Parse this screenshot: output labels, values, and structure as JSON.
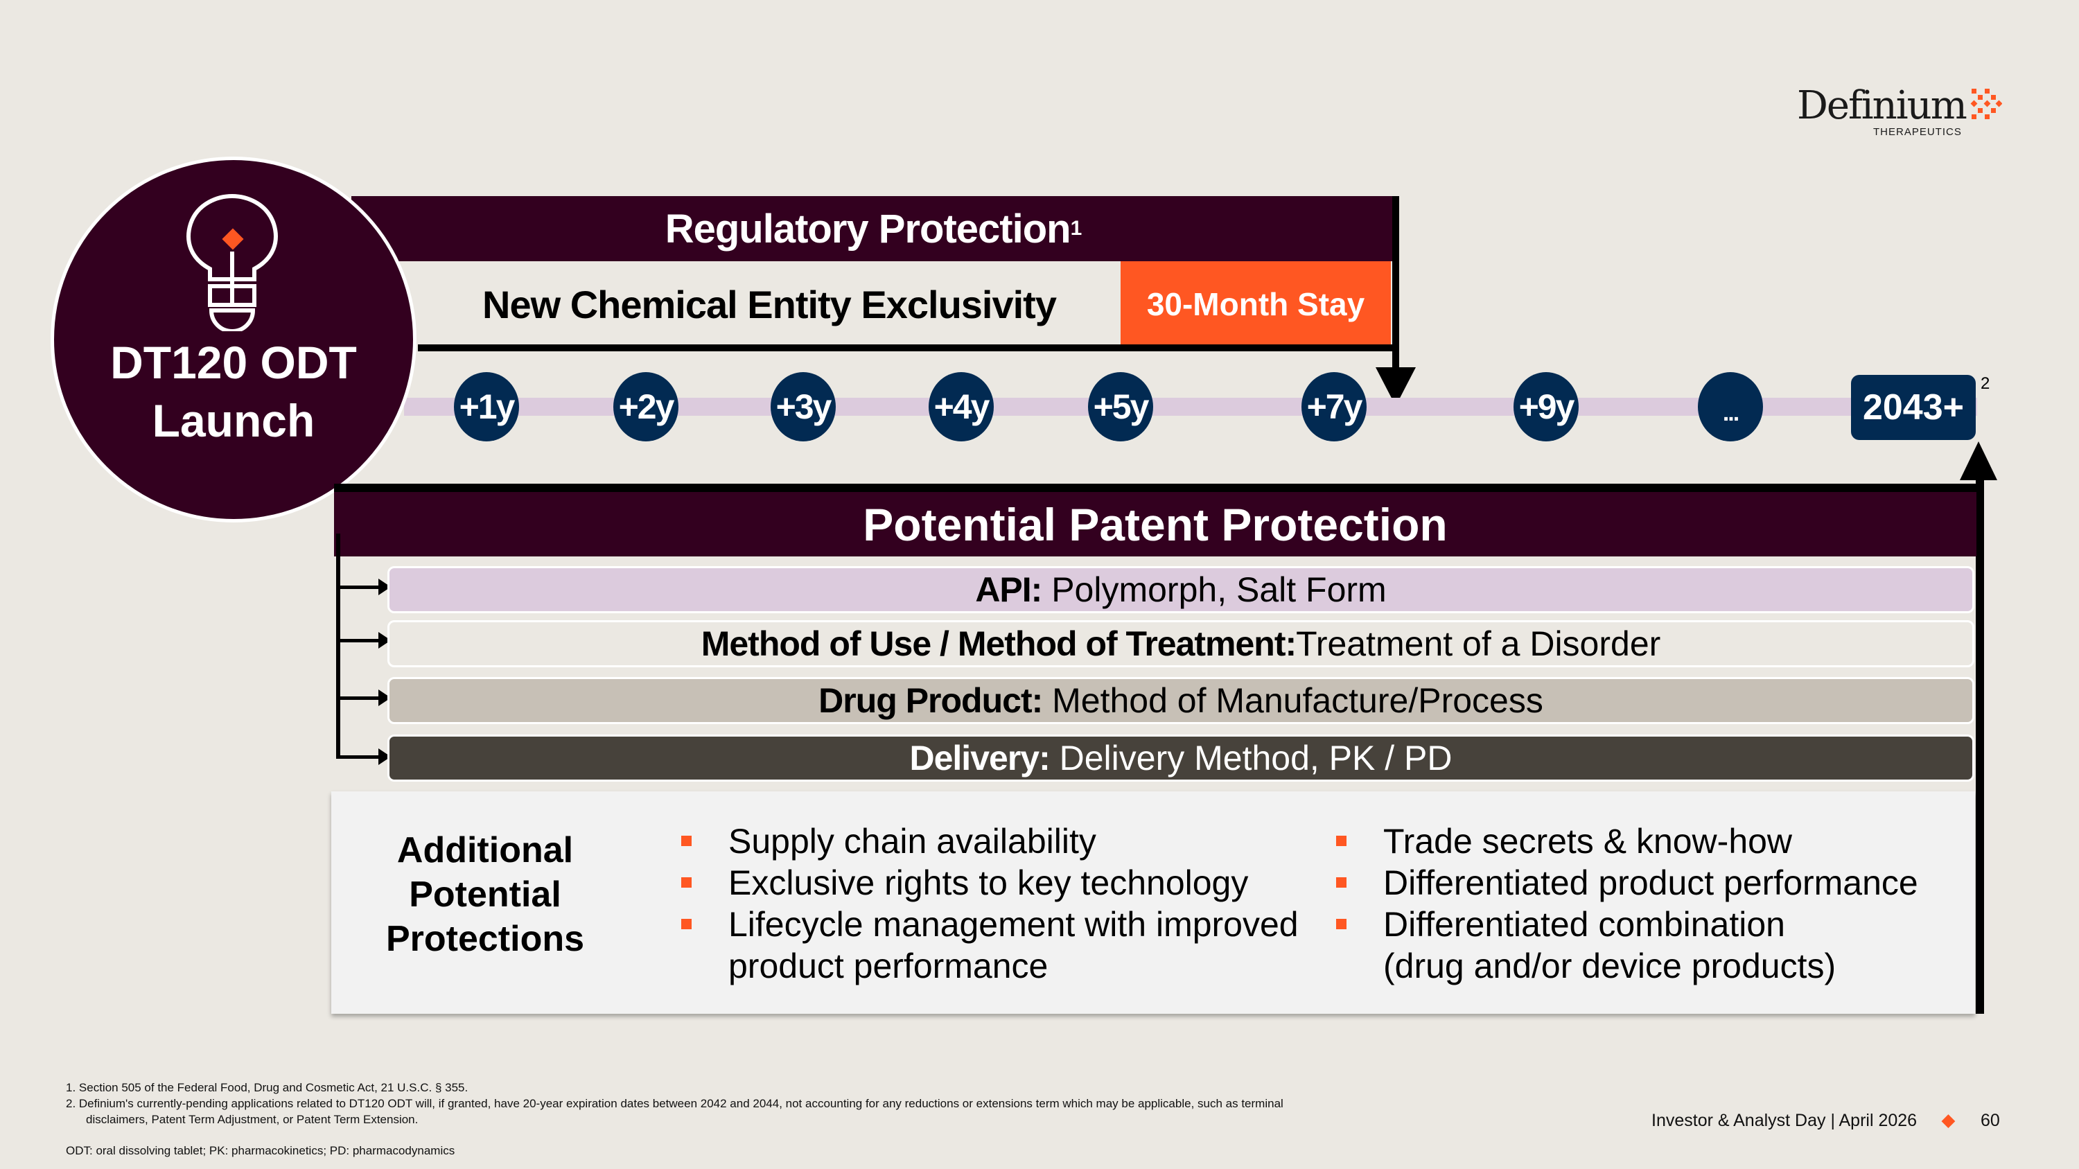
{
  "logo": {
    "name": "Definium",
    "sub": "THERAPEUTICS"
  },
  "launch": {
    "label_line1": "DT120 ODT",
    "label_line2": "Launch"
  },
  "regulatory": {
    "title": "Regulatory Protection",
    "sup": "1",
    "nce": "New Chemical Entity Exclusivity",
    "stay": "30-Month Stay"
  },
  "timeline": {
    "markers": [
      "+1y",
      "+2y",
      "+3y",
      "+4y",
      "+5y",
      "+7y",
      "+9y",
      "..."
    ],
    "end": "2043+",
    "end_sup": "2"
  },
  "patent": {
    "title": "Potential Patent Protection",
    "rows": [
      {
        "bold": "API:",
        "text": " Polymorph, Salt Form"
      },
      {
        "bold": "Method of Use / Method of Treatment:",
        "text": "Treatment of a Disorder"
      },
      {
        "bold": "Drug Product:",
        "text": " Method of Manufacture/Process"
      },
      {
        "bold": "Delivery:",
        "text": " Delivery Method, PK / PD"
      }
    ]
  },
  "additional": {
    "title_line1": "Additional",
    "title_line2": "Potential",
    "title_line3": "Protections",
    "col1": [
      "Supply chain availability",
      "Exclusive rights to key technology",
      "Lifecycle management with improved",
      "product performance"
    ],
    "col2": [
      "Trade secrets & know-how",
      "Differentiated product performance",
      "Differentiated combination",
      "(drug and/or device products)"
    ]
  },
  "footnotes": {
    "n1": "1.   Section 505 of the Federal Food, Drug and Cosmetic Act, 21 U.S.C. § 355.",
    "n2a": "2.   Definium's currently-pending applications related to DT120 ODT will, if granted, have 20-year expiration dates between 2042 and 2044, not accounting for any reductions or extensions term which may be applicable, such as terminal",
    "n2b": "disclaimers, Patent Term Adjustment, or Patent Term Extension.",
    "abbr": "ODT: oral dissolving tablet; PK: pharmacokinetics; PD: pharmacodynamics"
  },
  "footer": {
    "event": "Investor & Analyst Day | April 2026",
    "page": "60"
  },
  "colors": {
    "plum": "#33001f",
    "orange": "#ff5722",
    "navy": "#022a52",
    "lavender": "#dccbdd"
  }
}
